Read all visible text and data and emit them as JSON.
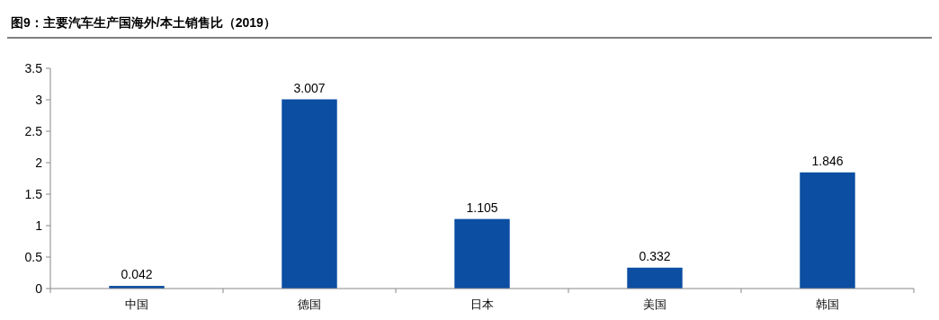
{
  "chart_data": {
    "type": "bar",
    "title": "图9：主要汽车生产国海外/本土销售比（2019）",
    "categories": [
      "中国",
      "德国",
      "日本",
      "美国",
      "韩国"
    ],
    "values": [
      0.042,
      3.007,
      1.105,
      0.332,
      1.846
    ],
    "color": "#0b4ea2",
    "ylim": [
      0,
      3.5
    ],
    "yticks": [
      0,
      0.5,
      1,
      1.5,
      2,
      2.5,
      3,
      3.5
    ],
    "data_labels": true,
    "grid": false
  }
}
